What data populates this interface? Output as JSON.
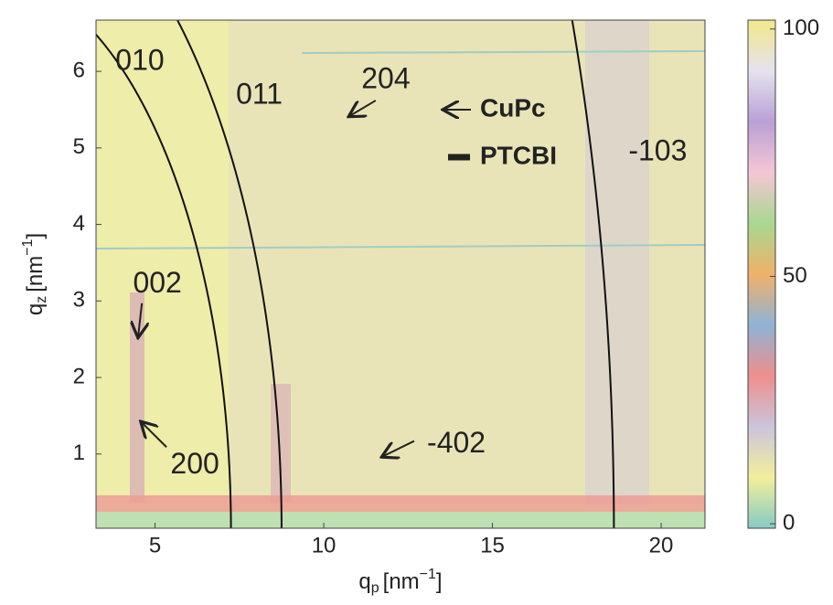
{
  "chart_data": {
    "type": "heatmap",
    "xlabel": {
      "symbol": "q",
      "subscript": "p",
      "unit": "nm",
      "exponent": "−1"
    },
    "ylabel": {
      "symbol": "q",
      "subscript": "z",
      "unit": "nm",
      "exponent": "−1"
    },
    "xlim": [
      3.25,
      21.3
    ],
    "ylim": [
      0.03,
      6.67
    ],
    "xticks": [
      5,
      10,
      15,
      20
    ],
    "yticks": [
      1,
      2,
      3,
      4,
      5,
      6
    ],
    "colorbar": {
      "lim": [
        -0.9,
        101.8
      ],
      "ticks": [
        0,
        50,
        100
      ],
      "colormap": [
        "#86cbc2",
        "#f2ef9c",
        "#cbc4dd",
        "#ee8f8c",
        "#8fb3d6",
        "#f0b169",
        "#a8d890",
        "#f5c6d6",
        "#b9a0d6",
        "#e6e2ee",
        "#f1e889"
      ]
    },
    "rings": [
      {
        "name": "010",
        "q": 7.25
      },
      {
        "name": "011",
        "q": 8.75
      },
      {
        "name": "-103",
        "q": 18.6
      }
    ],
    "annotations": [
      {
        "text": "010",
        "x": 4.55,
        "y": 6.12
      },
      {
        "text": "011",
        "x": 8.09,
        "y": 5.68
      },
      {
        "text": "204",
        "x": 11.84,
        "y": 5.88,
        "arrow": [
          11.54,
          5.62,
          10.78,
          5.42
        ]
      },
      {
        "text": "-103",
        "x": 19.9,
        "y": 4.94
      },
      {
        "text": "002",
        "x": 5.07,
        "y": 3.21,
        "arrow": [
          4.61,
          2.97,
          4.5,
          2.54
        ]
      },
      {
        "text": "200",
        "x": 6.18,
        "y": 0.85,
        "arrow": [
          5.34,
          1.09,
          4.61,
          1.41
        ]
      },
      {
        "text": "-402",
        "x": 13.93,
        "y": 1.12,
        "arrow": [
          12.68,
          1.17,
          11.76,
          0.97
        ]
      }
    ],
    "legend": [
      {
        "name": "CuPc",
        "marker": "arrow"
      },
      {
        "name": "PTCBI",
        "marker": "line"
      }
    ]
  }
}
